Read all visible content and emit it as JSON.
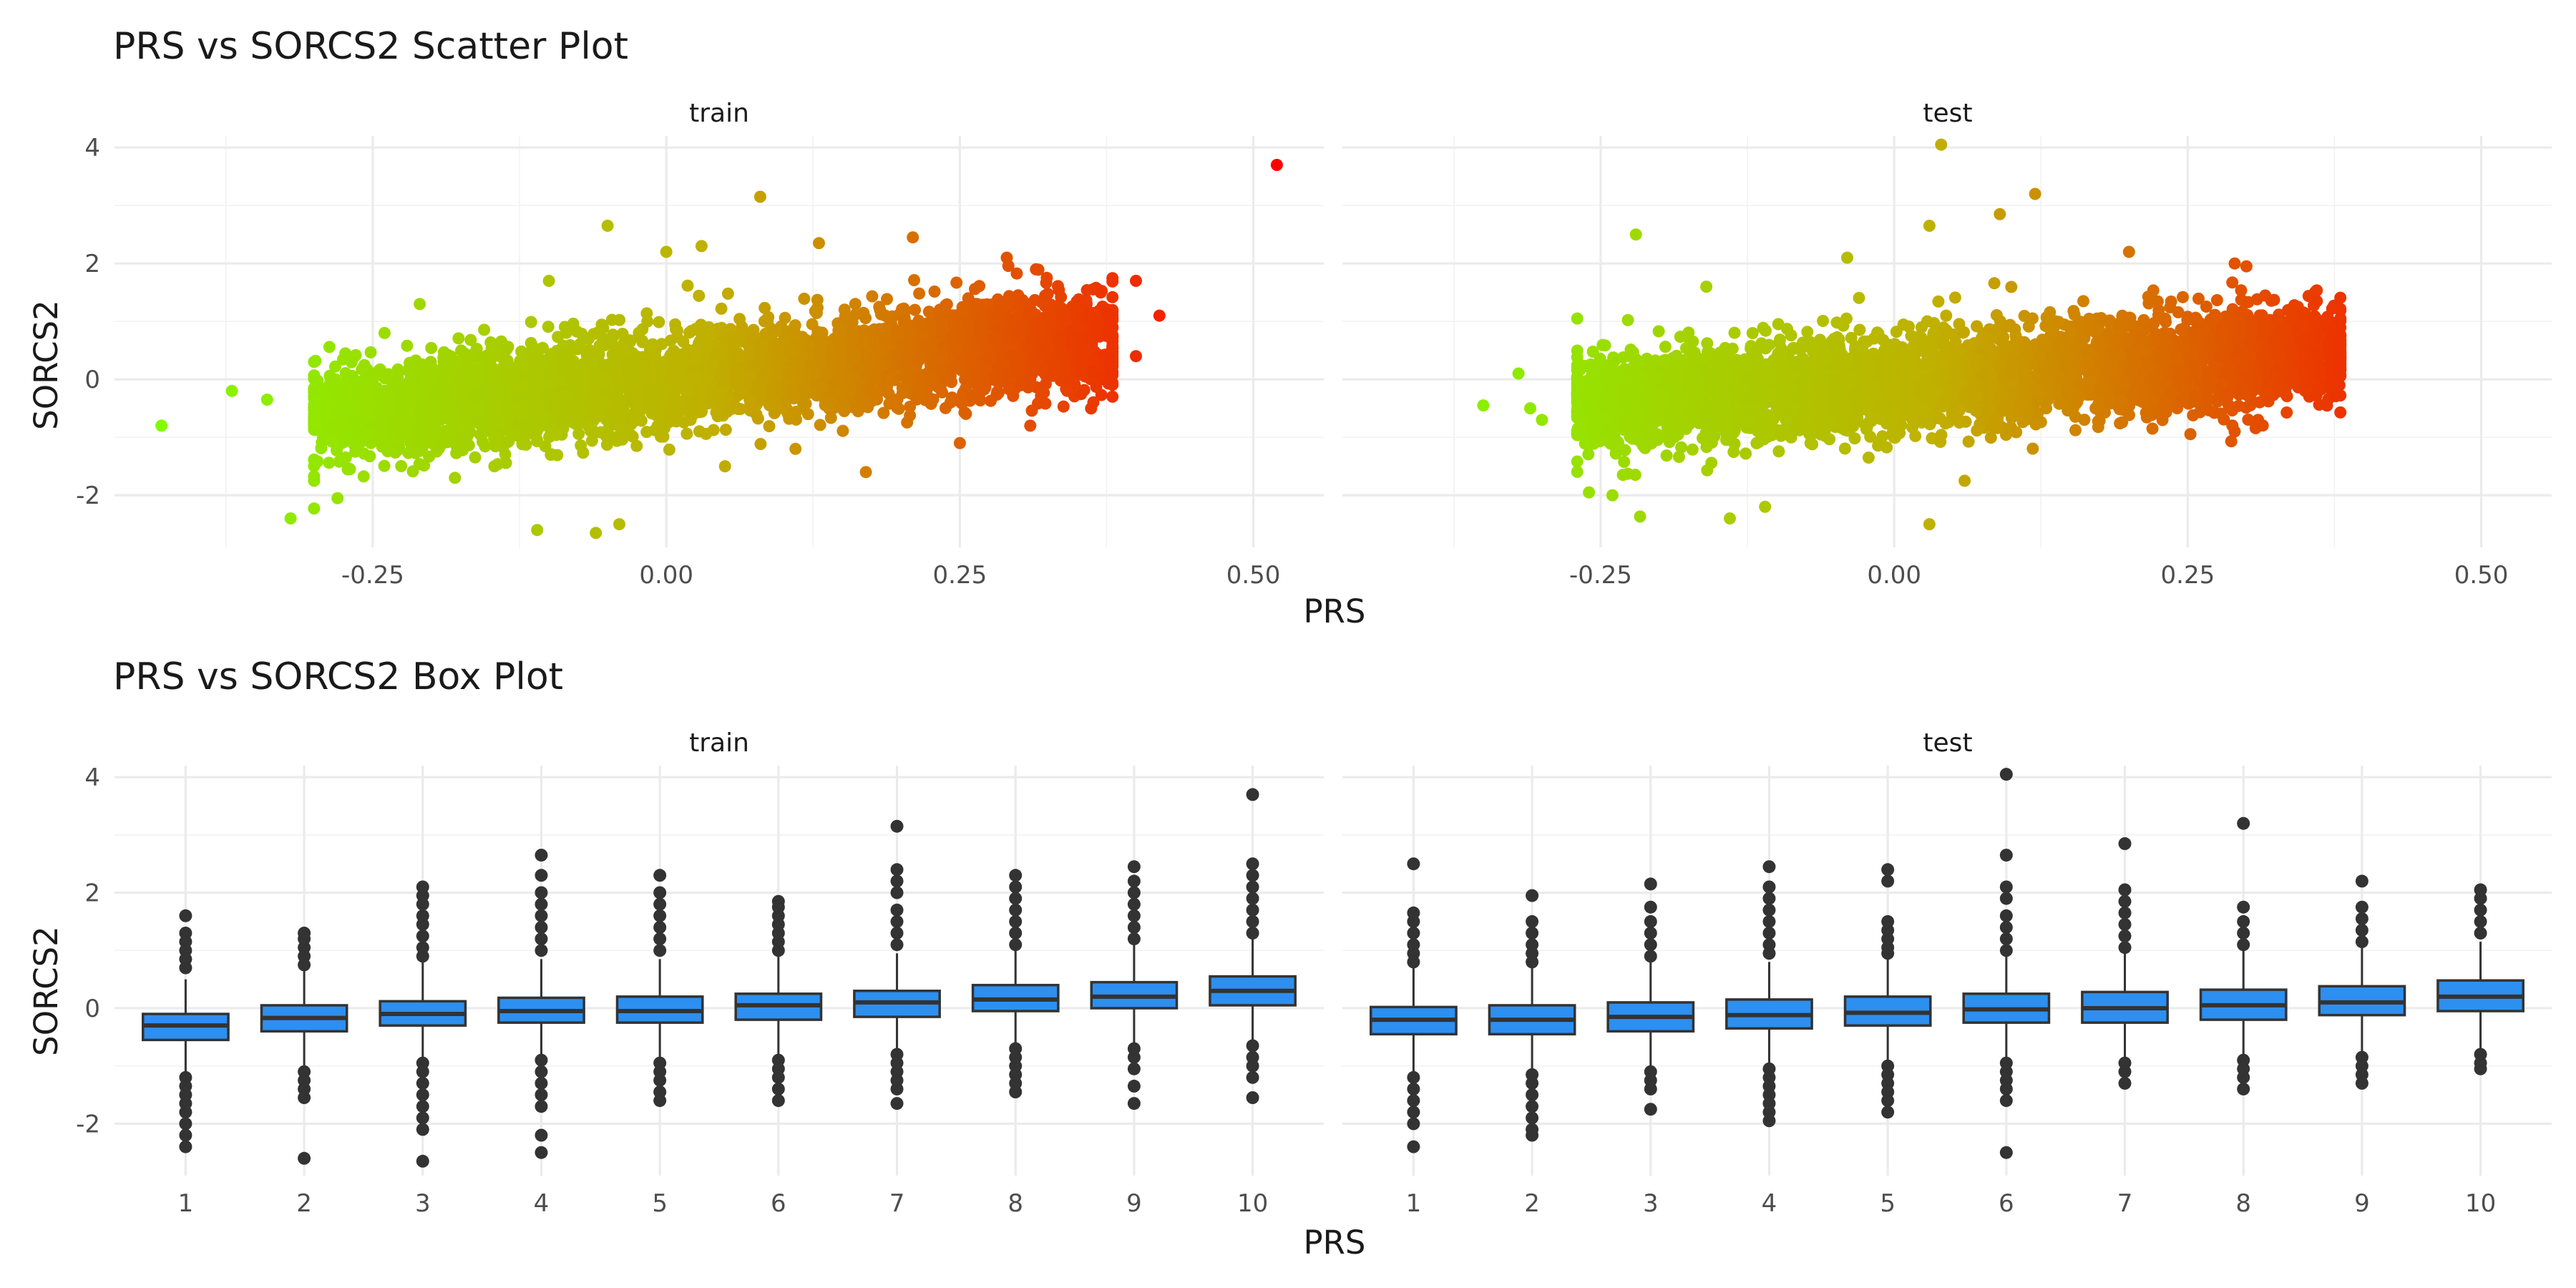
{
  "colors": {
    "low": "#7fff00",
    "mid": "#c0b000",
    "high": "#ff0000",
    "box_fill": "#2d8ff0",
    "box_line": "#333333",
    "outlier": "#333333"
  },
  "chart_data": [
    {
      "type": "scatter",
      "title": "PRS vs SORCS2 Scatter Plot",
      "xlabel": "PRS",
      "ylabel": "SORCS2",
      "xlim": [
        -0.47,
        0.56
      ],
      "ylim": [
        -2.9,
        4.2
      ],
      "x_ticks": [
        -0.25,
        0.0,
        0.25,
        0.5
      ],
      "x_tick_labels": [
        "-0.25",
        "0.00",
        "0.25",
        "0.50"
      ],
      "y_ticks": [
        -2,
        0,
        2,
        4
      ],
      "y_tick_labels": [
        "-2",
        "0",
        "2",
        "4"
      ],
      "color_scale": "gradient green (low PRS) to yellow to red (high PRS)",
      "grid": true,
      "facets": [
        {
          "label": "train",
          "cloud": {
            "x_range": [
              -0.3,
              0.38
            ],
            "slope": 2.1,
            "intercept": -0.02,
            "spread": 0.42
          },
          "points": [
            {
              "x": -0.43,
              "y": -0.8
            },
            {
              "x": -0.37,
              "y": -0.2
            },
            {
              "x": -0.34,
              "y": -0.35
            },
            {
              "x": 0.52,
              "y": 3.7
            },
            {
              "x": 0.08,
              "y": 3.15
            },
            {
              "x": -0.05,
              "y": 2.65
            },
            {
              "x": -0.11,
              "y": -2.6
            },
            {
              "x": -0.06,
              "y": -2.65
            },
            {
              "x": -0.04,
              "y": -2.5
            },
            {
              "x": -0.32,
              "y": -2.4
            },
            {
              "x": -0.3,
              "y": -1.75
            },
            {
              "x": -0.28,
              "y": -2.05
            },
            {
              "x": -0.3,
              "y": 0.3
            },
            {
              "x": -0.18,
              "y": -1.7
            },
            {
              "x": 0.05,
              "y": -1.5
            },
            {
              "x": 0.13,
              "y": 2.35
            },
            {
              "x": 0.21,
              "y": 2.45
            },
            {
              "x": 0.29,
              "y": 2.1
            },
            {
              "x": 0.37,
              "y": 1.5
            },
            {
              "x": 0.4,
              "y": 1.7
            },
            {
              "x": 0.42,
              "y": 1.1
            },
            {
              "x": 0.4,
              "y": 0.4
            },
            {
              "x": 0.38,
              "y": -0.3
            },
            {
              "x": 0.25,
              "y": -1.1
            },
            {
              "x": 0.17,
              "y": -1.6
            },
            {
              "x": -0.1,
              "y": 1.7
            },
            {
              "x": -0.21,
              "y": 1.3
            },
            {
              "x": -0.24,
              "y": 0.8
            },
            {
              "x": 0.0,
              "y": 2.2
            },
            {
              "x": 0.03,
              "y": 2.3
            },
            {
              "x": 0.11,
              "y": -1.2
            },
            {
              "x": 0.31,
              "y": -0.8
            },
            {
              "x": 0.35,
              "y": 0.9
            }
          ]
        },
        {
          "label": "test",
          "cloud": {
            "x_range": [
              -0.27,
              0.38
            ],
            "slope": 1.4,
            "intercept": -0.05,
            "spread": 0.42
          },
          "points": [
            {
              "x": 0.04,
              "y": 4.05
            },
            {
              "x": 0.12,
              "y": 3.2
            },
            {
              "x": 0.09,
              "y": 2.85
            },
            {
              "x": -0.22,
              "y": 2.5
            },
            {
              "x": 0.03,
              "y": 2.65
            },
            {
              "x": 0.2,
              "y": 2.2
            },
            {
              "x": -0.35,
              "y": -0.45
            },
            {
              "x": -0.32,
              "y": 0.1
            },
            {
              "x": -0.31,
              "y": -0.5
            },
            {
              "x": -0.3,
              "y": -0.7
            },
            {
              "x": -0.27,
              "y": 1.05
            },
            {
              "x": -0.26,
              "y": -1.95
            },
            {
              "x": -0.24,
              "y": -2.0
            },
            {
              "x": -0.14,
              "y": -2.4
            },
            {
              "x": 0.03,
              "y": -2.5
            },
            {
              "x": -0.11,
              "y": -2.2
            },
            {
              "x": 0.06,
              "y": -1.75
            },
            {
              "x": 0.29,
              "y": 2.0
            },
            {
              "x": 0.3,
              "y": 1.95
            },
            {
              "x": 0.36,
              "y": 1.35
            },
            {
              "x": 0.38,
              "y": 0.3
            },
            {
              "x": 0.37,
              "y": 0.6
            },
            {
              "x": 0.35,
              "y": -0.2
            },
            {
              "x": 0.29,
              "y": -0.9
            },
            {
              "x": 0.22,
              "y": -0.85
            },
            {
              "x": -0.16,
              "y": 1.6
            },
            {
              "x": -0.04,
              "y": 2.1
            }
          ]
        }
      ]
    },
    {
      "type": "box",
      "title": "PRS vs SORCS2 Box Plot",
      "xlabel": "PRS",
      "ylabel": "SORCS2",
      "categories": [
        "1",
        "2",
        "3",
        "4",
        "5",
        "6",
        "7",
        "8",
        "9",
        "10"
      ],
      "ylim": [
        -2.9,
        4.2
      ],
      "y_ticks": [
        -2,
        0,
        2,
        4
      ],
      "y_tick_labels": [
        "-2",
        "0",
        "2",
        "4"
      ],
      "grid": true,
      "facets": [
        {
          "label": "train",
          "boxes": [
            {
              "q1": -0.55,
              "median": -0.3,
              "q3": -0.1,
              "low": -1.1,
              "high": 0.5,
              "outliers_low": [
                -1.2,
                -1.35,
                -1.5,
                -1.65,
                -1.8,
                -2.0,
                -2.2,
                -2.4
              ],
              "outliers_high": [
                0.7,
                0.85,
                1.0,
                1.15,
                1.3,
                1.6
              ]
            },
            {
              "q1": -0.4,
              "median": -0.17,
              "q3": 0.05,
              "low": -1.0,
              "high": 0.65,
              "outliers_low": [
                -1.1,
                -1.25,
                -1.4,
                -1.55,
                -2.6
              ],
              "outliers_high": [
                0.75,
                0.9,
                1.05,
                1.2,
                1.3
              ]
            },
            {
              "q1": -0.3,
              "median": -0.1,
              "q3": 0.12,
              "low": -0.85,
              "high": 0.8,
              "outliers_low": [
                -0.95,
                -1.1,
                -1.3,
                -1.5,
                -1.7,
                -1.9,
                -2.1,
                -2.65
              ],
              "outliers_high": [
                0.9,
                1.05,
                1.25,
                1.45,
                1.6,
                1.8,
                1.95,
                2.1
              ]
            },
            {
              "q1": -0.25,
              "median": -0.05,
              "q3": 0.18,
              "low": -0.8,
              "high": 0.85,
              "outliers_low": [
                -0.9,
                -1.1,
                -1.3,
                -1.5,
                -1.7,
                -2.2,
                -2.5
              ],
              "outliers_high": [
                1.0,
                1.2,
                1.4,
                1.6,
                1.8,
                2.0,
                2.3,
                2.65
              ]
            },
            {
              "q1": -0.25,
              "median": -0.05,
              "q3": 0.2,
              "low": -0.85,
              "high": 0.85,
              "outliers_low": [
                -0.95,
                -1.1,
                -1.25,
                -1.45,
                -1.6
              ],
              "outliers_high": [
                1.0,
                1.2,
                1.4,
                1.6,
                1.8,
                2.0,
                2.3
              ]
            },
            {
              "q1": -0.2,
              "median": 0.05,
              "q3": 0.25,
              "low": -0.8,
              "high": 0.9,
              "outliers_low": [
                -0.9,
                -1.05,
                -1.2,
                -1.4,
                -1.6
              ],
              "outliers_high": [
                1.0,
                1.15,
                1.3,
                1.45,
                1.6,
                1.75,
                1.85
              ]
            },
            {
              "q1": -0.15,
              "median": 0.1,
              "q3": 0.3,
              "low": -0.7,
              "high": 0.95,
              "outliers_low": [
                -0.8,
                -0.95,
                -1.1,
                -1.25,
                -1.4,
                -1.65
              ],
              "outliers_high": [
                1.1,
                1.3,
                1.5,
                1.7,
                2.0,
                2.2,
                2.4,
                3.15
              ]
            },
            {
              "q1": -0.05,
              "median": 0.15,
              "q3": 0.4,
              "low": -0.6,
              "high": 1.0,
              "outliers_low": [
                -0.7,
                -0.85,
                -1.0,
                -1.15,
                -1.3,
                -1.45
              ],
              "outliers_high": [
                1.1,
                1.3,
                1.5,
                1.7,
                1.9,
                2.1,
                2.3
              ]
            },
            {
              "q1": 0.0,
              "median": 0.2,
              "q3": 0.45,
              "low": -0.6,
              "high": 1.1,
              "outliers_low": [
                -0.7,
                -0.85,
                -1.05,
                -1.35,
                -1.65
              ],
              "outliers_high": [
                1.2,
                1.4,
                1.6,
                1.8,
                2.0,
                2.2,
                2.45
              ]
            },
            {
              "q1": 0.05,
              "median": 0.3,
              "q3": 0.55,
              "low": -0.55,
              "high": 1.2,
              "outliers_low": [
                -0.65,
                -0.85,
                -1.0,
                -1.2,
                -1.55
              ],
              "outliers_high": [
                1.3,
                1.5,
                1.7,
                1.9,
                2.1,
                2.3,
                2.5,
                3.7
              ]
            }
          ]
        },
        {
          "label": "test",
          "boxes": [
            {
              "q1": -0.45,
              "median": -0.2,
              "q3": 0.02,
              "low": -1.1,
              "high": 0.7,
              "outliers_low": [
                -1.2,
                -1.4,
                -1.6,
                -1.8,
                -2.0,
                -2.4
              ],
              "outliers_high": [
                0.8,
                0.95,
                1.1,
                1.3,
                1.5,
                1.65,
                2.5
              ]
            },
            {
              "q1": -0.45,
              "median": -0.2,
              "q3": 0.05,
              "low": -1.05,
              "high": 0.7,
              "outliers_low": [
                -1.15,
                -1.3,
                -1.5,
                -1.7,
                -1.9,
                -2.1,
                -2.2
              ],
              "outliers_high": [
                0.8,
                0.95,
                1.1,
                1.3,
                1.5,
                1.95
              ]
            },
            {
              "q1": -0.4,
              "median": -0.15,
              "q3": 0.1,
              "low": -1.0,
              "high": 0.8,
              "outliers_low": [
                -1.1,
                -1.25,
                -1.4,
                -1.75
              ],
              "outliers_high": [
                0.9,
                1.1,
                1.3,
                1.5,
                1.75,
                2.15
              ]
            },
            {
              "q1": -0.35,
              "median": -0.12,
              "q3": 0.15,
              "low": -0.95,
              "high": 0.8,
              "outliers_low": [
                -1.05,
                -1.2,
                -1.35,
                -1.5,
                -1.65,
                -1.8,
                -1.95
              ],
              "outliers_high": [
                0.95,
                1.1,
                1.3,
                1.5,
                1.7,
                1.9,
                2.1,
                2.45
              ]
            },
            {
              "q1": -0.3,
              "median": -0.08,
              "q3": 0.2,
              "low": -0.9,
              "high": 0.85,
              "outliers_low": [
                -1.0,
                -1.15,
                -1.3,
                -1.45,
                -1.6,
                -1.8
              ],
              "outliers_high": [
                0.95,
                1.05,
                1.2,
                1.35,
                1.5,
                2.2,
                2.4
              ]
            },
            {
              "q1": -0.25,
              "median": -0.02,
              "q3": 0.25,
              "low": -0.85,
              "high": 0.9,
              "outliers_low": [
                -0.95,
                -1.1,
                -1.25,
                -1.4,
                -1.6,
                -2.5
              ],
              "outliers_high": [
                1.0,
                1.2,
                1.4,
                1.6,
                1.9,
                2.1,
                2.65,
                4.05
              ]
            },
            {
              "q1": -0.25,
              "median": 0.0,
              "q3": 0.28,
              "low": -0.85,
              "high": 0.95,
              "outliers_low": [
                -0.95,
                -1.1,
                -1.3
              ],
              "outliers_high": [
                1.05,
                1.25,
                1.45,
                1.65,
                1.85,
                2.05,
                2.85
              ]
            },
            {
              "q1": -0.2,
              "median": 0.05,
              "q3": 0.32,
              "low": -0.8,
              "high": 1.0,
              "outliers_low": [
                -0.9,
                -1.05,
                -1.2,
                -1.4
              ],
              "outliers_high": [
                1.1,
                1.3,
                1.5,
                1.75,
                3.2
              ]
            },
            {
              "q1": -0.12,
              "median": 0.1,
              "q3": 0.38,
              "low": -0.75,
              "high": 1.05,
              "outliers_low": [
                -0.85,
                -1.0,
                -1.15,
                -1.3
              ],
              "outliers_high": [
                1.15,
                1.35,
                1.55,
                1.75,
                2.2
              ]
            },
            {
              "q1": -0.05,
              "median": 0.2,
              "q3": 0.48,
              "low": -0.7,
              "high": 1.15,
              "outliers_low": [
                -0.8,
                -0.95,
                -1.05
              ],
              "outliers_high": [
                1.3,
                1.5,
                1.7,
                1.9,
                2.05
              ]
            }
          ]
        }
      ]
    }
  ]
}
